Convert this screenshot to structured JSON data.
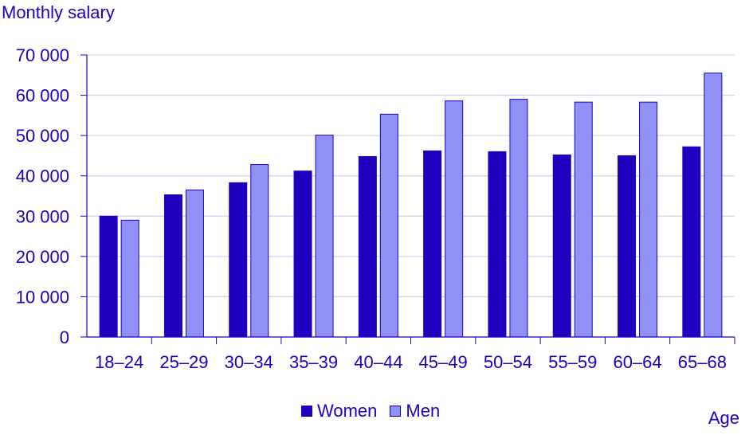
{
  "chart_data": {
    "type": "bar",
    "ylabel": "Monthly salary",
    "xlabel": "Age",
    "categories": [
      "18–24",
      "25–29",
      "30–34",
      "35–39",
      "40–44",
      "45–49",
      "50–54",
      "55–59",
      "60–64",
      "65–68"
    ],
    "series": [
      {
        "name": "Women",
        "color": "#1e00be",
        "values": [
          30000,
          35300,
          38300,
          41200,
          44800,
          46200,
          46000,
          45200,
          45000,
          47200
        ]
      },
      {
        "name": "Men",
        "color": "#9091f7",
        "values": [
          29000,
          36500,
          42800,
          50100,
          55300,
          58600,
          59000,
          58300,
          58300,
          65500
        ]
      }
    ],
    "ylim": [
      0,
      70000
    ],
    "yticks": [
      "0",
      "10 000",
      "20 000",
      "30 000",
      "40 000",
      "50 000",
      "60 000",
      "70 000"
    ],
    "grid": true,
    "legend_position": "bottom"
  }
}
